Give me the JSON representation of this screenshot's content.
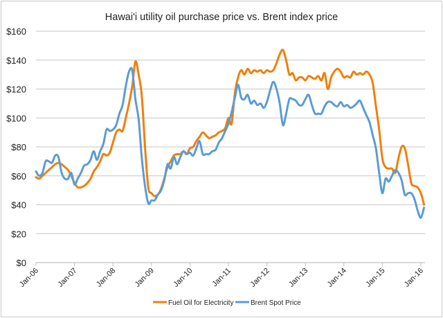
{
  "chart_data": {
    "type": "line",
    "title": "Hawai'i utility oil purchase price vs. Brent index price",
    "xlabel": "",
    "ylabel": "",
    "ylim": [
      0,
      160
    ],
    "yticks": [
      "$0",
      "$20",
      "$40",
      "$60",
      "$80",
      "$100",
      "$120",
      "$140",
      "$160"
    ],
    "xticks": [
      "Jan-06",
      "Jan-07",
      "Jan-08",
      "Jan-09",
      "Jan-10",
      "Jan-11",
      "Jan-12",
      "Jan-13",
      "Jan-14",
      "Jan-15",
      "Jan-16"
    ],
    "x_start": "Jan-06",
    "x_frequency": "monthly",
    "grid": true,
    "legend_position": "bottom",
    "series": [
      {
        "name": "Fuel Oil for Electricity",
        "color": "#f07f09",
        "values": [
          59,
          58,
          60,
          62,
          64,
          66,
          68,
          69,
          68,
          66,
          64,
          60,
          55,
          52,
          52,
          53,
          55,
          58,
          63,
          66,
          70,
          75,
          74,
          76,
          83,
          90,
          92,
          91,
          100,
          110,
          122,
          139,
          130,
          115,
          80,
          52,
          48,
          46,
          47,
          51,
          58,
          66,
          70,
          74,
          75,
          75,
          77,
          75,
          79,
          80,
          84,
          87,
          90,
          88,
          86,
          87,
          88,
          90,
          91,
          93,
          100,
          96,
          117,
          128,
          133,
          130,
          134,
          131,
          133,
          132,
          133,
          131,
          133,
          132,
          133,
          138,
          144,
          147,
          140,
          130,
          131,
          126,
          128,
          128,
          126,
          129,
          128,
          127,
          129,
          126,
          131,
          120,
          128,
          132,
          134,
          132,
          128,
          129,
          128,
          132,
          130,
          131,
          130,
          132,
          130,
          124,
          108,
          92,
          72,
          66,
          65,
          65,
          62,
          72,
          80,
          79,
          68,
          55,
          53,
          52,
          48,
          40
        ]
      },
      {
        "name": "Brent Spot Price",
        "color": "#5b9bd5",
        "values": [
          63,
          60,
          62,
          70,
          70,
          69,
          74,
          73,
          62,
          58,
          58,
          62,
          54,
          58,
          62,
          67,
          68,
          71,
          77,
          71,
          77,
          82,
          92,
          91,
          92,
          95,
          103,
          109,
          122,
          132,
          133,
          113,
          99,
          72,
          53,
          41,
          43,
          43,
          47,
          50,
          57,
          68,
          65,
          73,
          68,
          73,
          77,
          75,
          76,
          74,
          79,
          84,
          75,
          75,
          75,
          77,
          78,
          83,
          86,
          91,
          96,
          104,
          114,
          123,
          114,
          113,
          116,
          110,
          112,
          109,
          110,
          107,
          111,
          119,
          125,
          120,
          110,
          95,
          103,
          113,
          113,
          112,
          109,
          109,
          113,
          116,
          109,
          103,
          103,
          103,
          108,
          111,
          111,
          109,
          108,
          111,
          108,
          109,
          107,
          108,
          110,
          112,
          107,
          102,
          97,
          88,
          79,
          62,
          48,
          58,
          56,
          60,
          64,
          62,
          57,
          47,
          48,
          48,
          44,
          36,
          31,
          38
        ]
      }
    ]
  }
}
